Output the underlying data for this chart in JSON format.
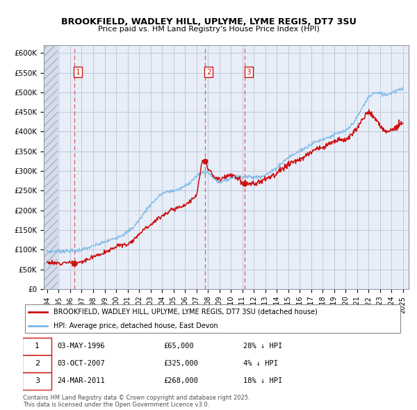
{
  "title1": "BROOKFIELD, WADLEY HILL, UPLYME, LYME REGIS, DT7 3SU",
  "title2": "Price paid vs. HM Land Registry's House Price Index (HPI)",
  "ylim": [
    0,
    620000
  ],
  "yticks": [
    0,
    50000,
    100000,
    150000,
    200000,
    250000,
    300000,
    350000,
    400000,
    450000,
    500000,
    550000,
    600000
  ],
  "ytick_labels": [
    "£0",
    "£50K",
    "£100K",
    "£150K",
    "£200K",
    "£250K",
    "£300K",
    "£350K",
    "£400K",
    "£450K",
    "£500K",
    "£550K",
    "£600K"
  ],
  "xlim_left": 1993.7,
  "xlim_right": 2025.5,
  "xticks": [
    1994,
    1995,
    1996,
    1997,
    1998,
    1999,
    2000,
    2001,
    2002,
    2003,
    2004,
    2005,
    2006,
    2007,
    2008,
    2009,
    2010,
    2011,
    2012,
    2013,
    2014,
    2015,
    2016,
    2017,
    2018,
    2019,
    2020,
    2021,
    2022,
    2023,
    2024,
    2025
  ],
  "transactions": [
    {
      "num": 1,
      "date": "03-MAY-1996",
      "price": 65000,
      "x": 1996.34,
      "pct": "28%",
      "dir": "↓"
    },
    {
      "num": 2,
      "date": "03-OCT-2007",
      "price": 325000,
      "x": 2007.75,
      "pct": "4%",
      "dir": "↓"
    },
    {
      "num": 3,
      "date": "24-MAR-2011",
      "price": 268000,
      "x": 2011.23,
      "pct": "18%",
      "dir": "↓"
    }
  ],
  "marker_prices": [
    65000,
    325000,
    268000
  ],
  "legend_label_red": "BROOKFIELD, WADLEY HILL, UPLYME, LYME REGIS, DT7 3SU (detached house)",
  "legend_label_blue": "HPI: Average price, detached house, East Devon",
  "copyright": "Contains HM Land Registry data © Crown copyright and database right 2025.\nThis data is licensed under the Open Government Licence v3.0.",
  "bg_color": "#e8eef8",
  "grid_color": "#c0c8d8",
  "line_red": "#cc1111",
  "line_blue": "#7ab8e8",
  "hpi_anchors": {
    "1994.0": 93000,
    "1994.5": 95000,
    "1995.0": 96000,
    "1995.5": 97000,
    "1996.0": 97500,
    "1996.5": 98500,
    "1997.0": 101000,
    "1997.5": 104000,
    "1998.0": 108000,
    "1998.5": 113000,
    "1999.0": 118000,
    "1999.5": 124000,
    "2000.0": 131000,
    "2000.5": 138000,
    "2001.0": 146000,
    "2001.5": 158000,
    "2002.0": 175000,
    "2002.5": 195000,
    "2003.0": 213000,
    "2003.5": 228000,
    "2004.0": 242000,
    "2004.5": 248000,
    "2005.0": 251000,
    "2005.5": 255000,
    "2006.0": 262000,
    "2006.5": 273000,
    "2007.0": 285000,
    "2007.5": 295000,
    "2008.0": 296000,
    "2008.5": 282000,
    "2009.0": 272000,
    "2009.5": 278000,
    "2010.0": 285000,
    "2010.5": 286000,
    "2011.0": 286000,
    "2011.5": 285000,
    "2012.0": 282000,
    "2012.5": 285000,
    "2013.0": 290000,
    "2013.5": 298000,
    "2014.0": 310000,
    "2014.5": 323000,
    "2015.0": 335000,
    "2015.5": 342000,
    "2016.0": 350000,
    "2016.5": 358000,
    "2017.0": 368000,
    "2017.5": 375000,
    "2018.0": 382000,
    "2018.5": 387000,
    "2019.0": 393000,
    "2019.5": 398000,
    "2020.0": 400000,
    "2020.5": 415000,
    "2021.0": 435000,
    "2021.5": 462000,
    "2022.0": 488000,
    "2022.5": 500000,
    "2023.0": 498000,
    "2023.5": 495000,
    "2024.0": 500000,
    "2024.5": 505000,
    "2025.0": 510000
  },
  "red_anchors_seg1": {
    "1994.0": 67000,
    "1994.5": 65000,
    "1995.0": 67000,
    "1995.5": 69000,
    "1996.0": 66000,
    "1996.34": 65000,
    "1997.0": 70000,
    "1997.5": 75000,
    "1998.0": 82000,
    "1998.5": 88000,
    "1999.0": 93000,
    "1999.5": 100000,
    "2000.0": 107000,
    "2000.5": 112000,
    "2001.0": 115000,
    "2001.5": 125000,
    "2002.0": 138000,
    "2002.5": 155000,
    "2003.0": 165000,
    "2003.5": 175000,
    "2004.0": 185000,
    "2004.5": 195000,
    "2005.0": 205000,
    "2005.5": 208000,
    "2006.0": 212000,
    "2006.5": 225000,
    "2007.0": 238000,
    "2007.5": 325000,
    "2007.75": 325000
  },
  "red_anchors_seg2": {
    "2007.75": 325000,
    "2008.0": 310000,
    "2008.5": 285000,
    "2009.0": 280000,
    "2009.5": 285000,
    "2010.0": 288000,
    "2010.5": 285000,
    "2011.0": 270000,
    "2011.23": 268000
  },
  "red_anchors_seg3": {
    "2011.23": 268000,
    "2011.5": 265000,
    "2012.0": 268000,
    "2012.5": 272000,
    "2013.0": 278000,
    "2013.5": 285000,
    "2014.0": 295000,
    "2014.5": 305000,
    "2015.0": 315000,
    "2015.5": 322000,
    "2016.0": 330000,
    "2016.5": 338000,
    "2017.0": 348000,
    "2017.5": 355000,
    "2018.0": 362000,
    "2018.5": 368000,
    "2019.0": 373000,
    "2019.5": 378000,
    "2020.0": 380000,
    "2020.5": 392000,
    "2021.0": 408000,
    "2021.5": 430000,
    "2022.0": 455000,
    "2022.5": 440000,
    "2023.0": 415000,
    "2023.5": 400000,
    "2024.0": 405000,
    "2024.5": 415000,
    "2025.0": 418000
  }
}
